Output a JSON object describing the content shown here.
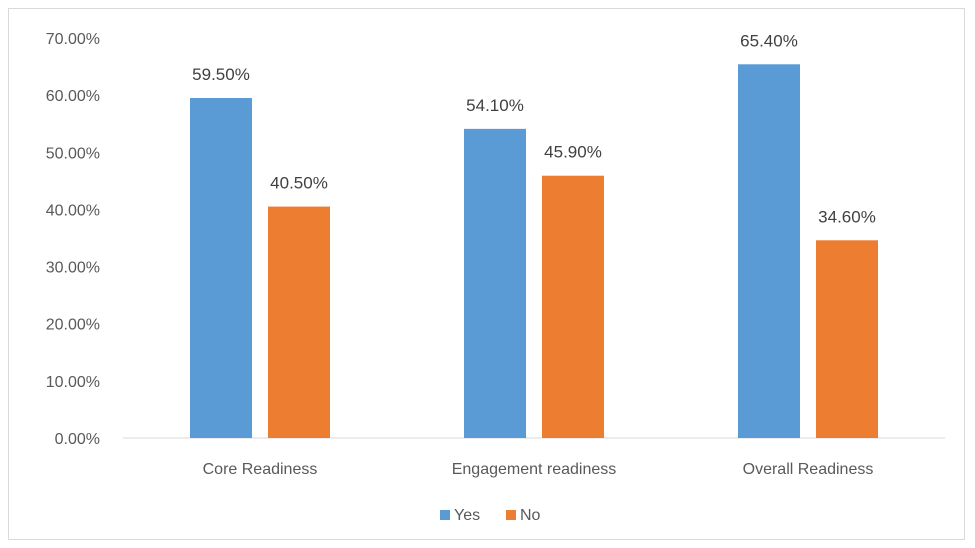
{
  "chart_data": {
    "type": "bar",
    "title": "",
    "xlabel": "",
    "ylabel": "",
    "categories": [
      "Core Readiness",
      "Engagement readiness",
      "Overall Readiness"
    ],
    "series": [
      {
        "name": "Yes",
        "color": "#5b9bd5",
        "values": [
          59.5,
          54.1,
          65.4
        ],
        "labels": [
          "59.50%",
          "54.10%",
          "65.40%"
        ]
      },
      {
        "name": "No",
        "color": "#ed7d31",
        "values": [
          40.5,
          45.9,
          34.6
        ],
        "labels": [
          "40.50%",
          "45.90%",
          "34.60%"
        ]
      }
    ],
    "ylim": [
      0,
      70
    ],
    "y_ticks": [
      0,
      10,
      20,
      30,
      40,
      50,
      60,
      70
    ],
    "y_tick_labels": [
      "0.00%",
      "10.00%",
      "20.00%",
      "30.00%",
      "40.00%",
      "50.00%",
      "60.00%",
      "70.00%"
    ],
    "grid": false,
    "legend": "bottom-center"
  }
}
